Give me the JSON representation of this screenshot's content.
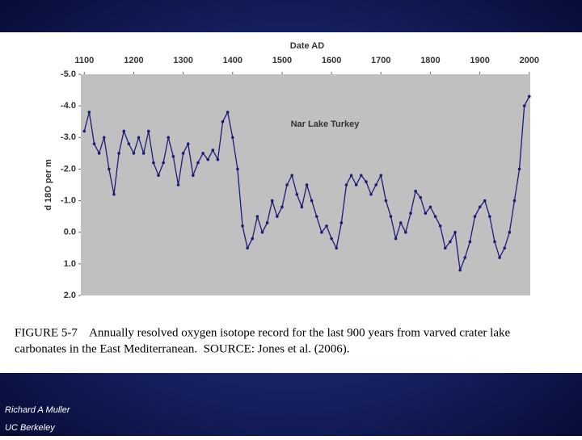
{
  "chart_data": {
    "type": "line",
    "x_label": "Date AD",
    "y_label": "d 18O per m",
    "annotation": "Nar Lake Turkey",
    "caption": [
      "FIGURE 5-7    Annually resolved oxygen isotope record for the last 900 years from varved crater lake",
      "carbonates in the East Mediterranean.  SOURCE: Jones et al. (2006)."
    ],
    "x": [
      1100,
      1110,
      1120,
      1130,
      1140,
      1150,
      1160,
      1170,
      1180,
      1190,
      1200,
      1210,
      1220,
      1230,
      1240,
      1250,
      1260,
      1270,
      1280,
      1290,
      1300,
      1310,
      1320,
      1330,
      1340,
      1350,
      1360,
      1370,
      1380,
      1390,
      1400,
      1410,
      1420,
      1430,
      1440,
      1450,
      1460,
      1470,
      1480,
      1490,
      1500,
      1510,
      1520,
      1530,
      1540,
      1550,
      1560,
      1570,
      1580,
      1590,
      1600,
      1610,
      1620,
      1630,
      1640,
      1650,
      1660,
      1670,
      1680,
      1690,
      1700,
      1710,
      1720,
      1730,
      1740,
      1750,
      1760,
      1770,
      1780,
      1790,
      1800,
      1810,
      1820,
      1830,
      1840,
      1850,
      1860,
      1870,
      1880,
      1890,
      1900,
      1910,
      1920,
      1930,
      1940,
      1950,
      1960,
      1970,
      1980,
      1990,
      2000
    ],
    "series": [
      {
        "color": "#1c1c78",
        "values": [
          -3.2,
          -3.8,
          -2.8,
          -2.5,
          -3.0,
          -2.0,
          -1.2,
          -2.5,
          -3.2,
          -2.8,
          -2.5,
          -3.0,
          -2.5,
          -3.2,
          -2.2,
          -1.8,
          -2.2,
          -3.0,
          -2.4,
          -1.5,
          -2.5,
          -2.8,
          -1.8,
          -2.2,
          -2.5,
          -2.3,
          -2.6,
          -2.3,
          -3.5,
          -3.8,
          -3.0,
          -2.0,
          -0.2,
          0.5,
          0.2,
          -0.5,
          0.0,
          -0.3,
          -1.0,
          -0.5,
          -0.8,
          -1.5,
          -1.8,
          -1.2,
          -0.8,
          -1.5,
          -1.0,
          -0.5,
          0.0,
          -0.2,
          0.2,
          0.5,
          -0.3,
          -1.5,
          -1.8,
          -1.5,
          -1.8,
          -1.6,
          -1.2,
          -1.5,
          -1.8,
          -1.0,
          -0.5,
          0.2,
          -0.3,
          0.0,
          -0.6,
          -1.3,
          -1.1,
          -0.6,
          -0.8,
          -0.5,
          -0.2,
          0.5,
          0.3,
          0.0,
          1.2,
          0.8,
          0.3,
          -0.5,
          -0.8,
          -1.0,
          -0.5,
          0.3,
          0.8,
          0.5,
          0.0,
          -1.0,
          -2.0,
          -4.0,
          -4.3
        ]
      }
    ],
    "xlim": [
      1093,
      2002
    ],
    "xticks": [
      1100,
      1200,
      1300,
      1400,
      1500,
      1600,
      1700,
      1800,
      1900,
      2000
    ],
    "ylim": [
      -5,
      2
    ],
    "y_inverted": true,
    "yticks": [
      {
        "value": -5,
        "label": "-5.0"
      },
      {
        "value": -4,
        "label": "-4.0"
      },
      {
        "value": -3,
        "label": "-3.0"
      },
      {
        "value": -2,
        "label": "-2.0"
      },
      {
        "value": -1,
        "label": "-1.0"
      },
      {
        "value": 0,
        "label": "0.0"
      },
      {
        "value": 1,
        "label": "1.0"
      },
      {
        "value": 2,
        "label": "2.0"
      }
    ],
    "x_axis_position": "top"
  },
  "footer": {
    "author": "Richard A Muller",
    "affiliation": "UC Berkeley"
  }
}
